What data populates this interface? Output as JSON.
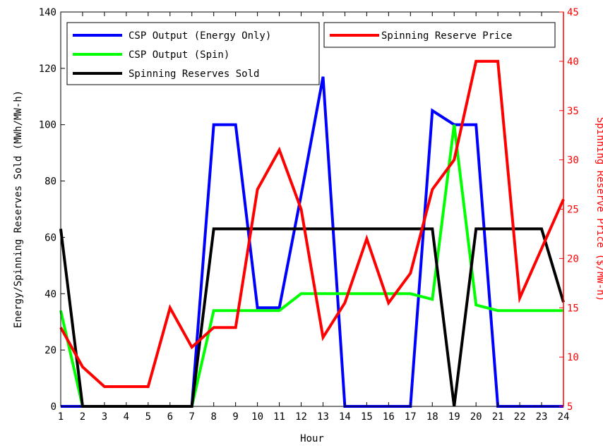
{
  "chart_data": {
    "type": "line",
    "title": "",
    "xlabel": "Hour",
    "ylabel_left": "Energy/Spinning Reserves Sold (MWh/MW-h)",
    "ylabel_right": "Spinning Reserve Price ($/MW-h)",
    "xlim": [
      1,
      24
    ],
    "ylim_left": [
      0,
      140
    ],
    "ylim_right": [
      5,
      45
    ],
    "x": [
      1,
      2,
      3,
      4,
      5,
      6,
      7,
      8,
      9,
      10,
      11,
      12,
      13,
      14,
      15,
      16,
      17,
      18,
      19,
      20,
      21,
      22,
      23,
      24
    ],
    "x_ticks": [
      "1",
      "2",
      "3",
      "4",
      "5",
      "6",
      "7",
      "8",
      "9",
      "10",
      "11",
      "12",
      "13",
      "14",
      "15",
      "16",
      "17",
      "18",
      "19",
      "20",
      "21",
      "22",
      "23",
      "24"
    ],
    "y_ticks_left": [
      "0",
      "20",
      "40",
      "60",
      "80",
      "100",
      "120",
      "140"
    ],
    "y_ticks_right": [
      "5",
      "10",
      "15",
      "20",
      "25",
      "30",
      "35",
      "40",
      "45"
    ],
    "grid": false,
    "legend": [
      {
        "name": "CSP Output (Energy Only)",
        "color": "#0000ff"
      },
      {
        "name": "CSP Output (Spin)",
        "color": "#00ff00"
      },
      {
        "name": "Spinning Reserves Sold",
        "color": "#000000"
      },
      {
        "name": "Spinning Reserve Price",
        "color": "#ff0000"
      }
    ],
    "series": [
      {
        "name": "CSP Output (Energy Only)",
        "axis": "left",
        "color": "#0000ff",
        "points": [
          [
            1,
            0
          ],
          [
            7,
            0
          ],
          [
            8,
            100
          ],
          [
            9,
            100
          ],
          [
            10,
            35
          ],
          [
            11,
            35
          ],
          [
            12,
            75
          ],
          [
            13,
            117
          ],
          [
            14,
            0
          ],
          [
            17,
            0
          ],
          [
            18,
            105
          ],
          [
            19,
            100
          ],
          [
            20,
            100
          ],
          [
            21,
            0
          ],
          [
            24,
            0
          ]
        ]
      },
      {
        "name": "CSP Output (Spin)",
        "axis": "left",
        "color": "#00ff00",
        "points": [
          [
            1,
            34
          ],
          [
            2,
            0
          ],
          [
            7,
            0
          ],
          [
            8,
            34
          ],
          [
            9,
            34
          ],
          [
            10,
            34
          ],
          [
            11,
            34
          ],
          [
            12,
            40
          ],
          [
            13,
            40
          ],
          [
            14,
            40
          ],
          [
            15,
            40
          ],
          [
            16,
            40
          ],
          [
            17,
            40
          ],
          [
            18,
            38
          ],
          [
            19,
            100
          ],
          [
            20,
            36
          ],
          [
            21,
            34
          ],
          [
            22,
            34
          ],
          [
            23,
            34
          ],
          [
            24,
            34
          ]
        ]
      },
      {
        "name": "Spinning Reserves Sold",
        "axis": "left",
        "color": "#000000",
        "points": [
          [
            1,
            63
          ],
          [
            2,
            0
          ],
          [
            7,
            0
          ],
          [
            8,
            63
          ],
          [
            9,
            63
          ],
          [
            10,
            63
          ],
          [
            11,
            63
          ],
          [
            12,
            63
          ],
          [
            13,
            63
          ],
          [
            14,
            63
          ],
          [
            15,
            63
          ],
          [
            16,
            63
          ],
          [
            17,
            63
          ],
          [
            18,
            63
          ],
          [
            19,
            0
          ],
          [
            20,
            63
          ],
          [
            21,
            63
          ],
          [
            22,
            63
          ],
          [
            23,
            63
          ],
          [
            24,
            37
          ]
        ]
      },
      {
        "name": "Spinning Reserve Price",
        "axis": "right",
        "color": "#ff0000",
        "points": [
          [
            1,
            13
          ],
          [
            2,
            9
          ],
          [
            3,
            7
          ],
          [
            4,
            7
          ],
          [
            5,
            7
          ],
          [
            6,
            15
          ],
          [
            7,
            11
          ],
          [
            8,
            13
          ],
          [
            9,
            13
          ],
          [
            10,
            27
          ],
          [
            11,
            31
          ],
          [
            12,
            25
          ],
          [
            13,
            12
          ],
          [
            14,
            15.5
          ],
          [
            15,
            22
          ],
          [
            16,
            15.5
          ],
          [
            17,
            18.5
          ],
          [
            18,
            27
          ],
          [
            19,
            30
          ],
          [
            20,
            40
          ],
          [
            21,
            40
          ],
          [
            22,
            16
          ],
          [
            23,
            21
          ],
          [
            24,
            26
          ]
        ]
      }
    ]
  }
}
